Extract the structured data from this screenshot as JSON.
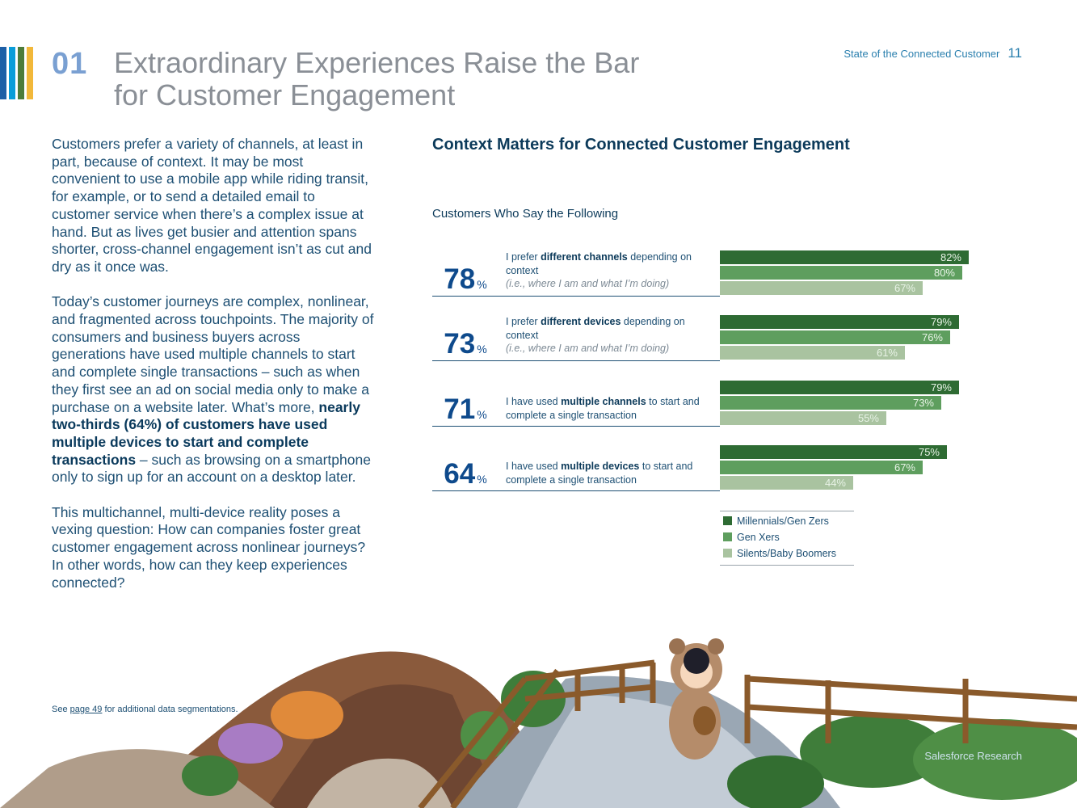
{
  "header": {
    "section_number": "01",
    "title_line1": "Extraordinary Experiences Raise the Bar",
    "title_line2": "for Customer Engagement",
    "report_name": "State of the Connected Customer",
    "page_number": "11"
  },
  "stripe_colors": [
    "#1d5fa6",
    "#0a9dd9",
    "#4d7c3a",
    "#f2b83a"
  ],
  "body": {
    "p1": "Customers prefer a variety of channels, at least in part, because of context. It may be most convenient to use a mobile app while riding transit, for example, or to send a detailed email to customer service when there’s a complex issue at hand. But as lives get busier and attention spans shorter, cross-channel engagement isn’t as cut and dry as it once was.",
    "p2_a": "Today’s customer journeys are complex, nonlinear, and fragmented across touchpoints. The majority of consumers and business buyers across generations have used multiple channels to start and complete single transactions – such as when they first see an ad on social media only to make a purchase on a website later. What’s more, ",
    "p2_bold": "nearly two-thirds (64%) of customers have used multiple devices to start and complete transactions",
    "p2_b": " – such as browsing on a smartphone only to sign up for an account on a desktop later.",
    "p3": "This multichannel, multi-device reality poses a vexing question: How can companies foster great customer engagement across nonlinear journeys? In other words, how can they keep experiences connected?"
  },
  "chart_data": {
    "type": "bar",
    "title": "Context Matters for Connected Customer Engagement",
    "subtitle": "Customers Who Say the Following",
    "series_names": [
      "Millennials/Gen Zers",
      "Gen Xers",
      "Silents/Baby Boomers"
    ],
    "colors": [
      "#2e6b33",
      "#5e9e5e",
      "#a9c3a0"
    ],
    "value_max": 100,
    "rows": [
      {
        "total": "78",
        "pct_sign": "%",
        "pre": "I prefer ",
        "bold": "different channels",
        "post": " depending on context",
        "note": "(i.e., where I am and what I’m doing)",
        "values": [
          82,
          80,
          67
        ],
        "labels": [
          "82%",
          "80%",
          "67%"
        ]
      },
      {
        "total": "73",
        "pct_sign": "%",
        "pre": "I prefer ",
        "bold": "different devices",
        "post": " depending on context",
        "note": "(i.e., where I am and what I’m doing)",
        "values": [
          79,
          76,
          61
        ],
        "labels": [
          "79%",
          "76%",
          "61%"
        ]
      },
      {
        "total": "71",
        "pct_sign": "%",
        "pre": "I have used ",
        "bold": "multiple channels",
        "post": " to start and complete a single transaction",
        "note": "",
        "values": [
          79,
          73,
          55
        ],
        "labels": [
          "79%",
          "73%",
          "55%"
        ]
      },
      {
        "total": "64",
        "pct_sign": "%",
        "pre": "I have used ",
        "bold": "multiple devices",
        "post": " to start and complete a single transaction",
        "note": "",
        "values": [
          75,
          67,
          44
        ],
        "labels": [
          "75%",
          "67%",
          "44%"
        ]
      }
    ]
  },
  "footnote": {
    "pre": "See ",
    "link": "page 49",
    "post": " for additional data segmentations."
  },
  "brand": "Salesforce Research"
}
